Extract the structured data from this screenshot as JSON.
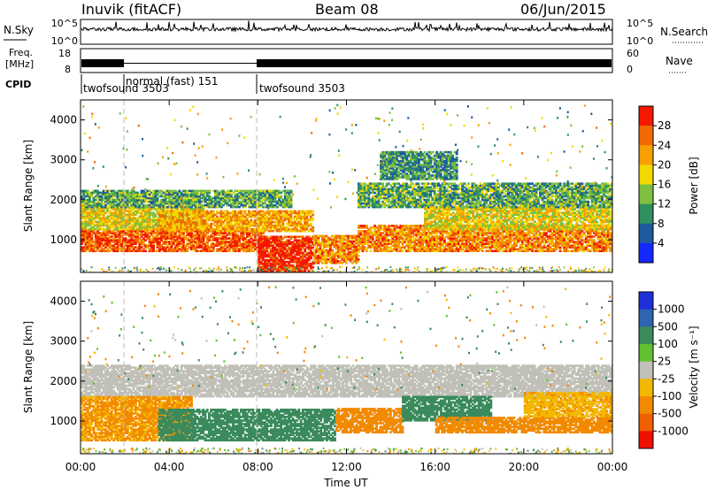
{
  "header": {
    "station": "Inuvik (fitACF)",
    "beam": "Beam 08",
    "date": "06/Jun/2015"
  },
  "top_panels": {
    "nsky_label": "N.Sky",
    "nsearch_label": "N.Search",
    "nsky_ticks": [
      "10^5",
      "10^0"
    ],
    "nsearch_ticks": [
      "10^5",
      "10^0"
    ],
    "freq_label_line1": "Freq.",
    "freq_label_line2": "[MHz]",
    "freq_ticks": [
      "18",
      "8"
    ],
    "nave_label": "Nave",
    "nave_ticks": [
      "60",
      "0"
    ],
    "cpid_label": "CPID",
    "cpid_segments": [
      {
        "label": "twofsound 3503",
        "start_hour": 0,
        "end_hour": 2
      },
      {
        "label": "normal (fast) 151",
        "start_hour": 2,
        "end_hour": 8
      },
      {
        "label": "twofsound 3503",
        "start_hour": 8,
        "end_hour": 24
      }
    ]
  },
  "chart_data": [
    {
      "type": "heatmap",
      "name": "Power",
      "xlabel": "Time UT",
      "ylabel": "Slant Range [km]",
      "xlim": [
        0,
        24
      ],
      "ylim": [
        180,
        4500
      ],
      "x_ticks": [
        "00:00",
        "04:00",
        "08:00",
        "12:00",
        "16:00",
        "20:00",
        "00:00"
      ],
      "y_ticks": [
        1000,
        2000,
        3000,
        4000
      ],
      "colorbar": {
        "label": "Power [dB]",
        "range": [
          0,
          32
        ],
        "ticks": [
          "4",
          "8",
          "12",
          "16",
          "20",
          "24",
          "28"
        ],
        "colors": [
          "#1428ff",
          "#1e5a9e",
          "#2f8f5f",
          "#7ec040",
          "#f2d800",
          "#f5a000",
          "#f06a00",
          "#f41800"
        ]
      },
      "bands": [
        {
          "t0": 0,
          "t1": 8.2,
          "r0": 700,
          "r1": 1250,
          "value": 27
        },
        {
          "t0": 0,
          "t1": 5.5,
          "r0": 1250,
          "r1": 1800,
          "value": 18
        },
        {
          "t0": 3.5,
          "t1": 10.5,
          "r0": 1200,
          "r1": 1700,
          "value": 22
        },
        {
          "t0": 0,
          "t1": 9.5,
          "r0": 1800,
          "r1": 2250,
          "value": 12
        },
        {
          "t0": 8,
          "t1": 10.5,
          "r0": 200,
          "r1": 1100,
          "value": 30
        },
        {
          "t0": 10.5,
          "t1": 12.5,
          "r0": 400,
          "r1": 1100,
          "value": 24
        },
        {
          "t0": 12.5,
          "t1": 24,
          "r0": 700,
          "r1": 1350,
          "value": 24
        },
        {
          "t0": 15.5,
          "t1": 24,
          "r0": 1250,
          "r1": 1800,
          "value": 18
        },
        {
          "t0": 12.5,
          "t1": 24,
          "r0": 1800,
          "r1": 2400,
          "value": 12
        },
        {
          "t0": 13.5,
          "t1": 17,
          "r0": 2500,
          "r1": 3200,
          "value": 10
        }
      ]
    },
    {
      "type": "heatmap",
      "name": "Velocity",
      "xlabel": "Time UT",
      "ylabel": "Slant Range [km]",
      "xlim": [
        0,
        24
      ],
      "ylim": [
        180,
        4500
      ],
      "x_ticks": [
        "00:00",
        "04:00",
        "08:00",
        "12:00",
        "16:00",
        "20:00",
        "00:00"
      ],
      "y_ticks": [
        1000,
        2000,
        3000,
        4000
      ],
      "colorbar": {
        "label": "Velocity [m s⁻¹]",
        "ticks": [
          "1000",
          "500",
          "100",
          "25",
          "-25",
          "-100",
          "-500",
          "-1000"
        ],
        "colors": [
          "#2030d8",
          "#2e64b0",
          "#3a8a5c",
          "#62c030",
          "#c0c0b8",
          "#f2b800",
          "#f28a00",
          "#f06000",
          "#f01000"
        ]
      },
      "bands": [
        {
          "t0": 0,
          "t1": 24,
          "r0": 1600,
          "r1": 2400,
          "value": 0
        },
        {
          "t0": 0,
          "t1": 5,
          "r0": 500,
          "r1": 1600,
          "value": -120
        },
        {
          "t0": 3.5,
          "t1": 11.5,
          "r0": 500,
          "r1": 1300,
          "value": 300
        },
        {
          "t0": 11.5,
          "t1": 14.5,
          "r0": 700,
          "r1": 1300,
          "value": -300
        },
        {
          "t0": 14.5,
          "t1": 18.5,
          "r0": 1000,
          "r1": 1600,
          "value": 300
        },
        {
          "t0": 16,
          "t1": 24,
          "r0": 700,
          "r1": 1100,
          "value": -300
        },
        {
          "t0": 20,
          "t1": 24,
          "r0": 1100,
          "r1": 1700,
          "value": -80
        }
      ]
    }
  ]
}
